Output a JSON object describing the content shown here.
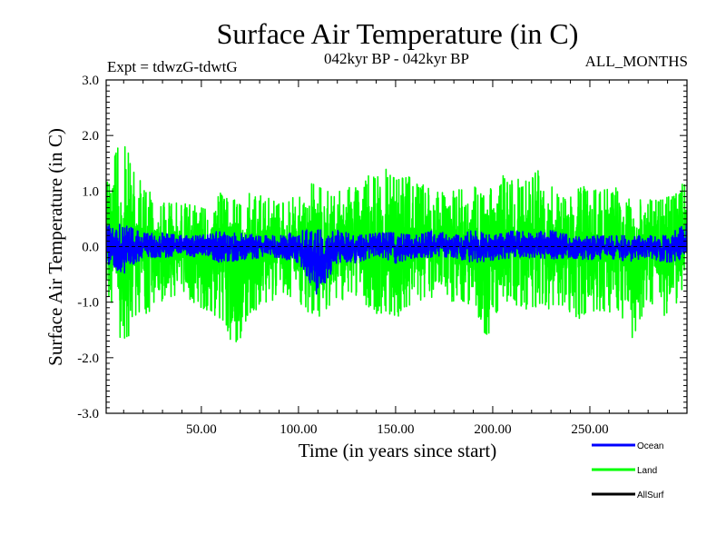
{
  "chart_data": {
    "type": "line",
    "title": "Surface Air Temperature (in C)",
    "subtitle_left": "Expt = tdwzG-tdwtG",
    "subtitle_center": "042kyr BP - 042kyr BP",
    "subtitle_right": "ALL_MONTHS",
    "xlabel": "Time (in years since start)",
    "ylabel": "Surface Air Temperature (in C)",
    "xlim": [
      1,
      300
    ],
    "ylim": [
      -3.0,
      3.0
    ],
    "x_ticks": [
      50,
      100,
      150,
      200,
      250
    ],
    "x_tick_labels": [
      "50.00",
      "100.00",
      "150.00",
      "200.00",
      "250.00"
    ],
    "y_ticks": [
      -3.0,
      -2.0,
      -1.0,
      0.0,
      1.0,
      2.0,
      3.0
    ],
    "y_tick_labels": [
      "-3.0",
      "-2.0",
      "-1.0",
      "0.0",
      "1.0",
      "2.0",
      "3.0"
    ],
    "zero_line": true,
    "grid": false,
    "legend_position": "bottom-right",
    "series": [
      {
        "name": "Land",
        "color": "#00ff00",
        "envelope": [
          {
            "x": 1,
            "min": -0.9,
            "max": 1.1
          },
          {
            "x": 5,
            "min": -1.3,
            "max": 1.6
          },
          {
            "x": 10,
            "min": -2.0,
            "max": 2.15
          },
          {
            "x": 15,
            "min": -1.4,
            "max": 1.5
          },
          {
            "x": 20,
            "min": -1.3,
            "max": 1.2
          },
          {
            "x": 25,
            "min": -1.1,
            "max": 0.9
          },
          {
            "x": 30,
            "min": -1.0,
            "max": 0.8
          },
          {
            "x": 40,
            "min": -0.9,
            "max": 0.8
          },
          {
            "x": 50,
            "min": -1.1,
            "max": 0.7
          },
          {
            "x": 60,
            "min": -1.3,
            "max": 1.0
          },
          {
            "x": 68,
            "min": -1.9,
            "max": 0.9
          },
          {
            "x": 75,
            "min": -1.2,
            "max": 1.0
          },
          {
            "x": 90,
            "min": -0.9,
            "max": 0.8
          },
          {
            "x": 100,
            "min": -1.1,
            "max": 1.0
          },
          {
            "x": 110,
            "min": -1.3,
            "max": 1.2
          },
          {
            "x": 120,
            "min": -1.0,
            "max": 1.0
          },
          {
            "x": 130,
            "min": -0.9,
            "max": 1.1
          },
          {
            "x": 140,
            "min": -1.2,
            "max": 1.4
          },
          {
            "x": 150,
            "min": -1.3,
            "max": 1.4
          },
          {
            "x": 160,
            "min": -1.0,
            "max": 1.2
          },
          {
            "x": 170,
            "min": -0.9,
            "max": 1.0
          },
          {
            "x": 180,
            "min": -1.0,
            "max": 1.0
          },
          {
            "x": 190,
            "min": -1.1,
            "max": 1.1
          },
          {
            "x": 197,
            "min": -1.7,
            "max": 1.0
          },
          {
            "x": 205,
            "min": -1.0,
            "max": 1.3
          },
          {
            "x": 215,
            "min": -1.1,
            "max": 1.2
          },
          {
            "x": 225,
            "min": -1.2,
            "max": 1.4
          },
          {
            "x": 235,
            "min": -1.1,
            "max": 0.9
          },
          {
            "x": 245,
            "min": -1.3,
            "max": 1.1
          },
          {
            "x": 255,
            "min": -1.2,
            "max": 1.0
          },
          {
            "x": 265,
            "min": -1.2,
            "max": 1.1
          },
          {
            "x": 272,
            "min": -1.7,
            "max": 0.8
          },
          {
            "x": 280,
            "min": -1.0,
            "max": 0.9
          },
          {
            "x": 290,
            "min": -1.3,
            "max": 0.9
          },
          {
            "x": 295,
            "min": -1.0,
            "max": 1.0
          },
          {
            "x": 300,
            "min": -0.6,
            "max": 1.25
          }
        ]
      },
      {
        "name": "Ocean",
        "color": "#0000ff",
        "envelope": [
          {
            "x": 1,
            "min": -0.3,
            "max": 0.5
          },
          {
            "x": 10,
            "min": -0.5,
            "max": 0.4
          },
          {
            "x": 20,
            "min": -0.2,
            "max": 0.25
          },
          {
            "x": 30,
            "min": -0.2,
            "max": 0.25
          },
          {
            "x": 40,
            "min": -0.15,
            "max": 0.2
          },
          {
            "x": 50,
            "min": -0.2,
            "max": 0.2
          },
          {
            "x": 60,
            "min": -0.3,
            "max": 0.3
          },
          {
            "x": 70,
            "min": -0.25,
            "max": 0.25
          },
          {
            "x": 80,
            "min": -0.2,
            "max": 0.2
          },
          {
            "x": 90,
            "min": -0.2,
            "max": 0.2
          },
          {
            "x": 100,
            "min": -0.3,
            "max": 0.3
          },
          {
            "x": 110,
            "min": -0.9,
            "max": 0.3
          },
          {
            "x": 120,
            "min": -0.3,
            "max": 0.3
          },
          {
            "x": 130,
            "min": -0.3,
            "max": 0.2
          },
          {
            "x": 140,
            "min": -0.15,
            "max": 0.25
          },
          {
            "x": 150,
            "min": -0.3,
            "max": 0.25
          },
          {
            "x": 160,
            "min": -0.2,
            "max": 0.2
          },
          {
            "x": 170,
            "min": -0.2,
            "max": 0.3
          },
          {
            "x": 180,
            "min": -0.2,
            "max": 0.2
          },
          {
            "x": 190,
            "min": -0.3,
            "max": 0.3
          },
          {
            "x": 200,
            "min": -0.25,
            "max": 0.2
          },
          {
            "x": 210,
            "min": -0.2,
            "max": 0.3
          },
          {
            "x": 220,
            "min": -0.2,
            "max": 0.25
          },
          {
            "x": 230,
            "min": -0.25,
            "max": 0.3
          },
          {
            "x": 240,
            "min": -0.2,
            "max": 0.2
          },
          {
            "x": 250,
            "min": -0.25,
            "max": 0.2
          },
          {
            "x": 260,
            "min": -0.2,
            "max": 0.2
          },
          {
            "x": 270,
            "min": -0.3,
            "max": 0.2
          },
          {
            "x": 280,
            "min": -0.2,
            "max": 0.2
          },
          {
            "x": 290,
            "min": -0.3,
            "max": 0.2
          },
          {
            "x": 300,
            "min": -0.2,
            "max": 0.45
          }
        ]
      },
      {
        "name": "AllSurf",
        "color": "#000000",
        "envelope": []
      }
    ],
    "legend": [
      {
        "name": "Ocean",
        "color": "#0000ff"
      },
      {
        "name": "Land",
        "color": "#00ff00"
      },
      {
        "name": "AllSurf",
        "color": "#000000"
      }
    ]
  }
}
